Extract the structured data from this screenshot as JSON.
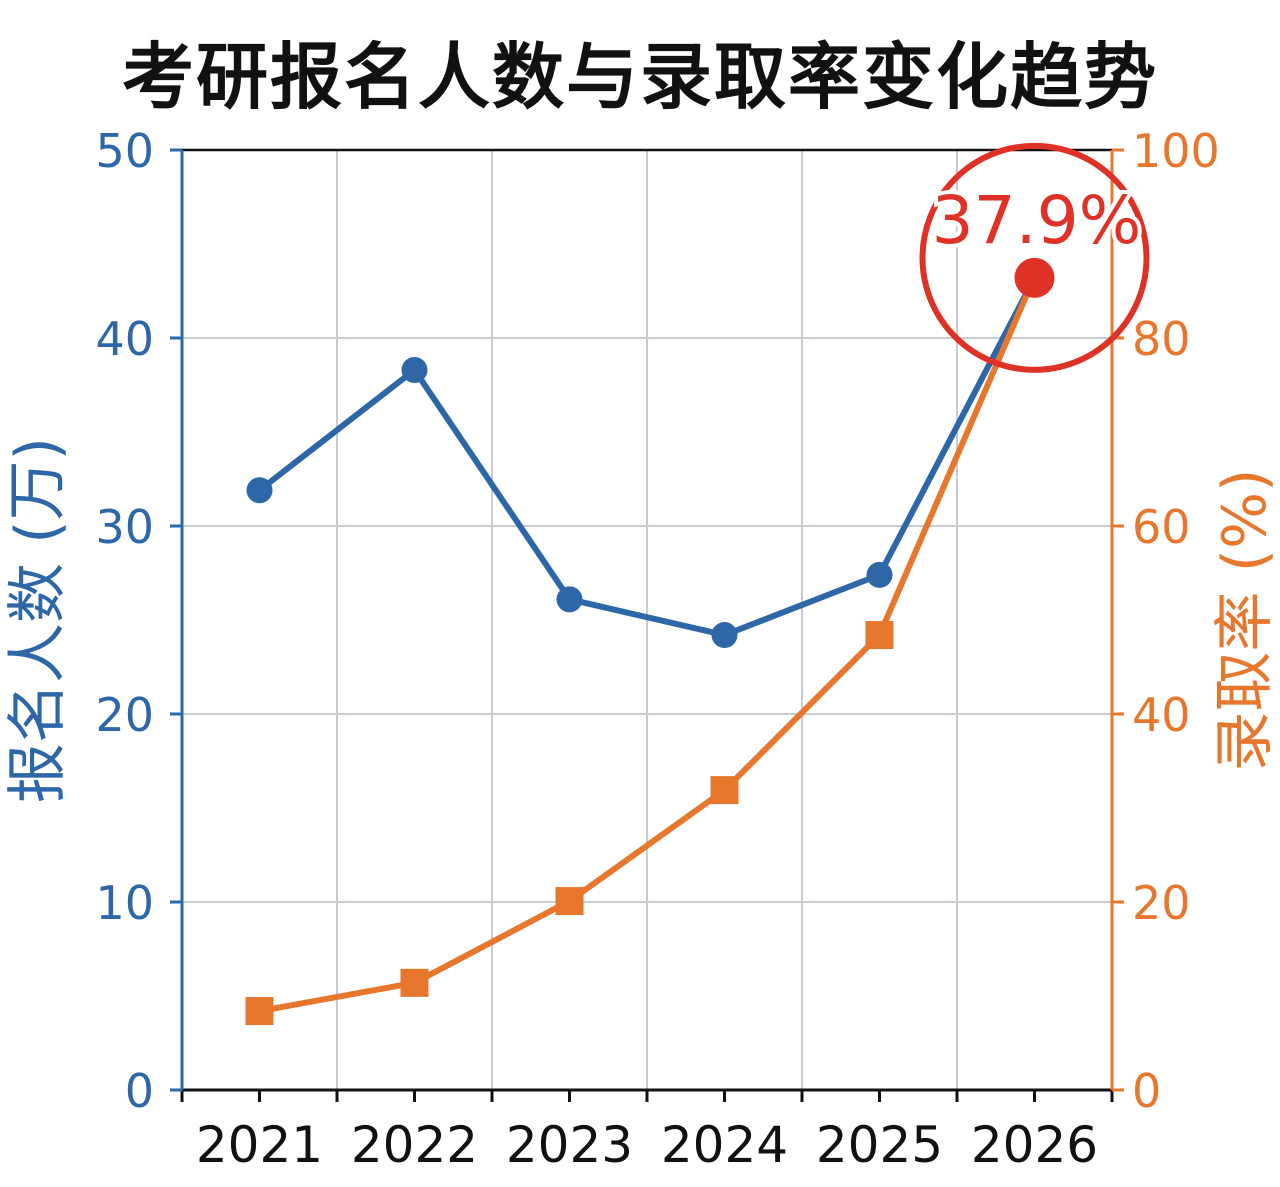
{
  "chart_data": {
    "type": "line",
    "title": "考研报名人数与录取率变化趋势",
    "categories": [
      "2021",
      "2022",
      "2023",
      "2024",
      "2025",
      "2026"
    ],
    "y_left": {
      "label": "报名人数 (万)",
      "range": [
        0,
        50
      ],
      "ticks": [
        0,
        10,
        20,
        30,
        40,
        50
      ],
      "color": "#2e67a8"
    },
    "y_right": {
      "label": "录取率 (%)",
      "range": [
        0,
        100
      ],
      "ticks": [
        0,
        20,
        40,
        60,
        80,
        100
      ],
      "color": "#e8772e"
    },
    "series": [
      {
        "axis": "left",
        "color": "#2e67a8",
        "marker": "circle",
        "values": [
          31.9,
          38.3,
          26.1,
          24.2,
          27.4,
          43.2
        ]
      },
      {
        "axis": "right",
        "color": "#e8772e",
        "marker": "square",
        "values": [
          8.4,
          11.4,
          20.1,
          31.9,
          48.4,
          86.5
        ]
      }
    ],
    "annotation": {
      "text": "37.9%",
      "category": "2026",
      "color": "#e03127"
    },
    "grid": true
  }
}
